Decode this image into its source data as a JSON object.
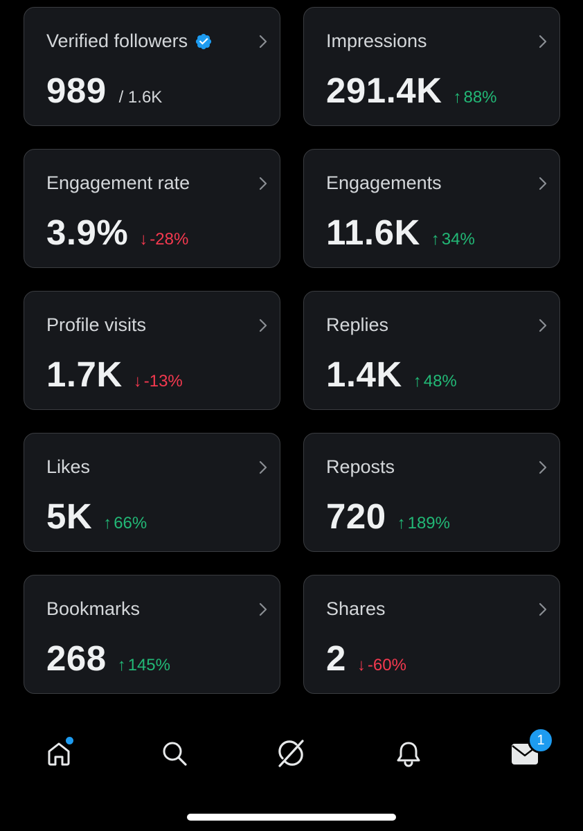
{
  "colors": {
    "background": "#000000",
    "card_background": "#16181c",
    "card_border": "#3a3c40",
    "positive": "#22b876",
    "negative": "#f4394f",
    "accent": "#1d9bf0"
  },
  "metrics": [
    {
      "title": "Verified followers",
      "value": "989",
      "sub": "/ 1.6K",
      "verified": true,
      "icon": "chevron-right-icon"
    },
    {
      "title": "Impressions",
      "value": "291.4K",
      "change": "88%",
      "direction": "up",
      "icon": "chevron-right-icon"
    },
    {
      "title": "Engagement rate",
      "value": "3.9%",
      "change": "-28%",
      "direction": "down",
      "icon": "chevron-right-icon"
    },
    {
      "title": "Engagements",
      "value": "11.6K",
      "change": "34%",
      "direction": "up",
      "icon": "chevron-right-icon"
    },
    {
      "title": "Profile visits",
      "value": "1.7K",
      "change": "-13%",
      "direction": "down",
      "icon": "chevron-right-icon"
    },
    {
      "title": "Replies",
      "value": "1.4K",
      "change": "48%",
      "direction": "up",
      "icon": "chevron-right-icon"
    },
    {
      "title": "Likes",
      "value": "5K",
      "change": "66%",
      "direction": "up",
      "icon": "chevron-right-icon"
    },
    {
      "title": "Reposts",
      "value": "720",
      "change": "189%",
      "direction": "up",
      "icon": "chevron-right-icon"
    },
    {
      "title": "Bookmarks",
      "value": "268",
      "change": "145%",
      "direction": "up",
      "icon": "chevron-right-icon"
    },
    {
      "title": "Shares",
      "value": "2",
      "change": "-60%",
      "direction": "down",
      "icon": "chevron-right-icon"
    }
  ],
  "arrows": {
    "up": "↑",
    "down": "↓"
  },
  "nav": {
    "items": [
      {
        "icon": "home-icon",
        "has_dot": true
      },
      {
        "icon": "search-icon"
      },
      {
        "icon": "grok-icon"
      },
      {
        "icon": "bell-icon"
      },
      {
        "icon": "mail-icon",
        "badge": "1"
      }
    ]
  }
}
